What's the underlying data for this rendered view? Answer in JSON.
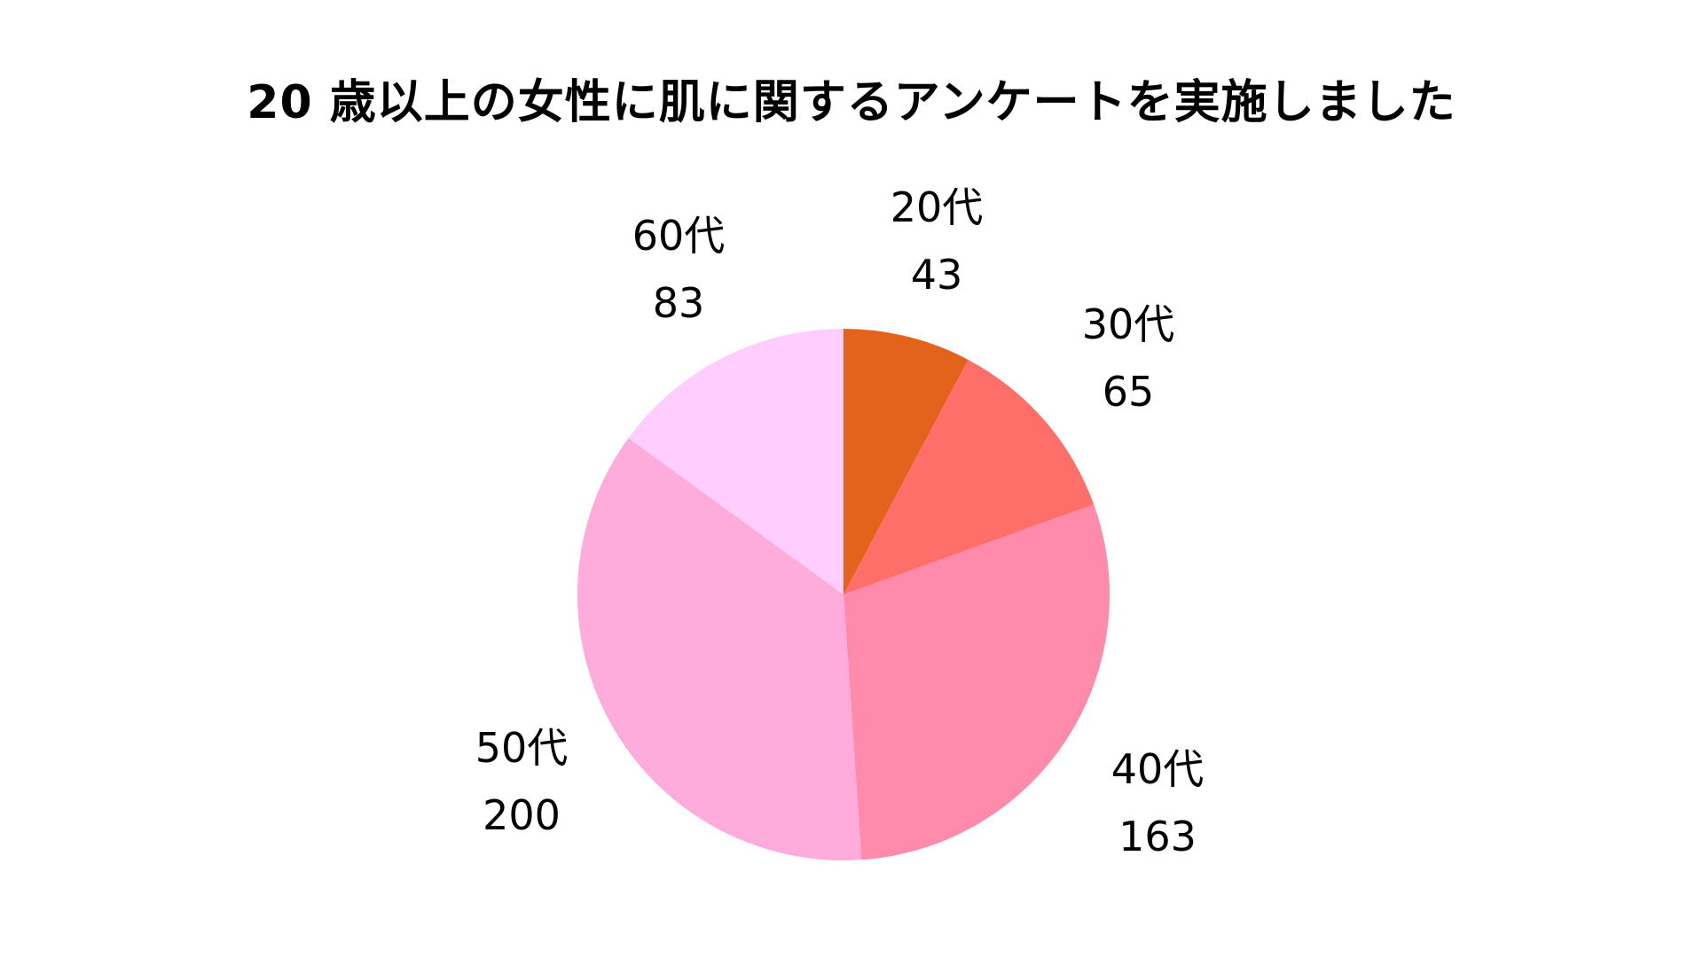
{
  "chart_data": {
    "type": "pie",
    "title": "20 歳以上の女性に肌に関するアンケートを実施しました",
    "categories": [
      "20代",
      "30代",
      "40代",
      "50代",
      "60代"
    ],
    "values": [
      43,
      65,
      163,
      200,
      83
    ],
    "colors": [
      "#E3621C",
      "#FF6F69",
      "#FF8AAC",
      "#FFABDB",
      "#FFCDFE"
    ],
    "start_angle": "12 o'clock",
    "direction": "clockwise",
    "legend": "none (labels outside slices)",
    "xlabel": "",
    "ylabel": ""
  },
  "labels": [
    {
      "name": "20代",
      "value": "43"
    },
    {
      "name": "30代",
      "value": "65"
    },
    {
      "name": "40代",
      "value": "163"
    },
    {
      "name": "50代",
      "value": "200"
    },
    {
      "name": "60代",
      "value": "83"
    }
  ]
}
